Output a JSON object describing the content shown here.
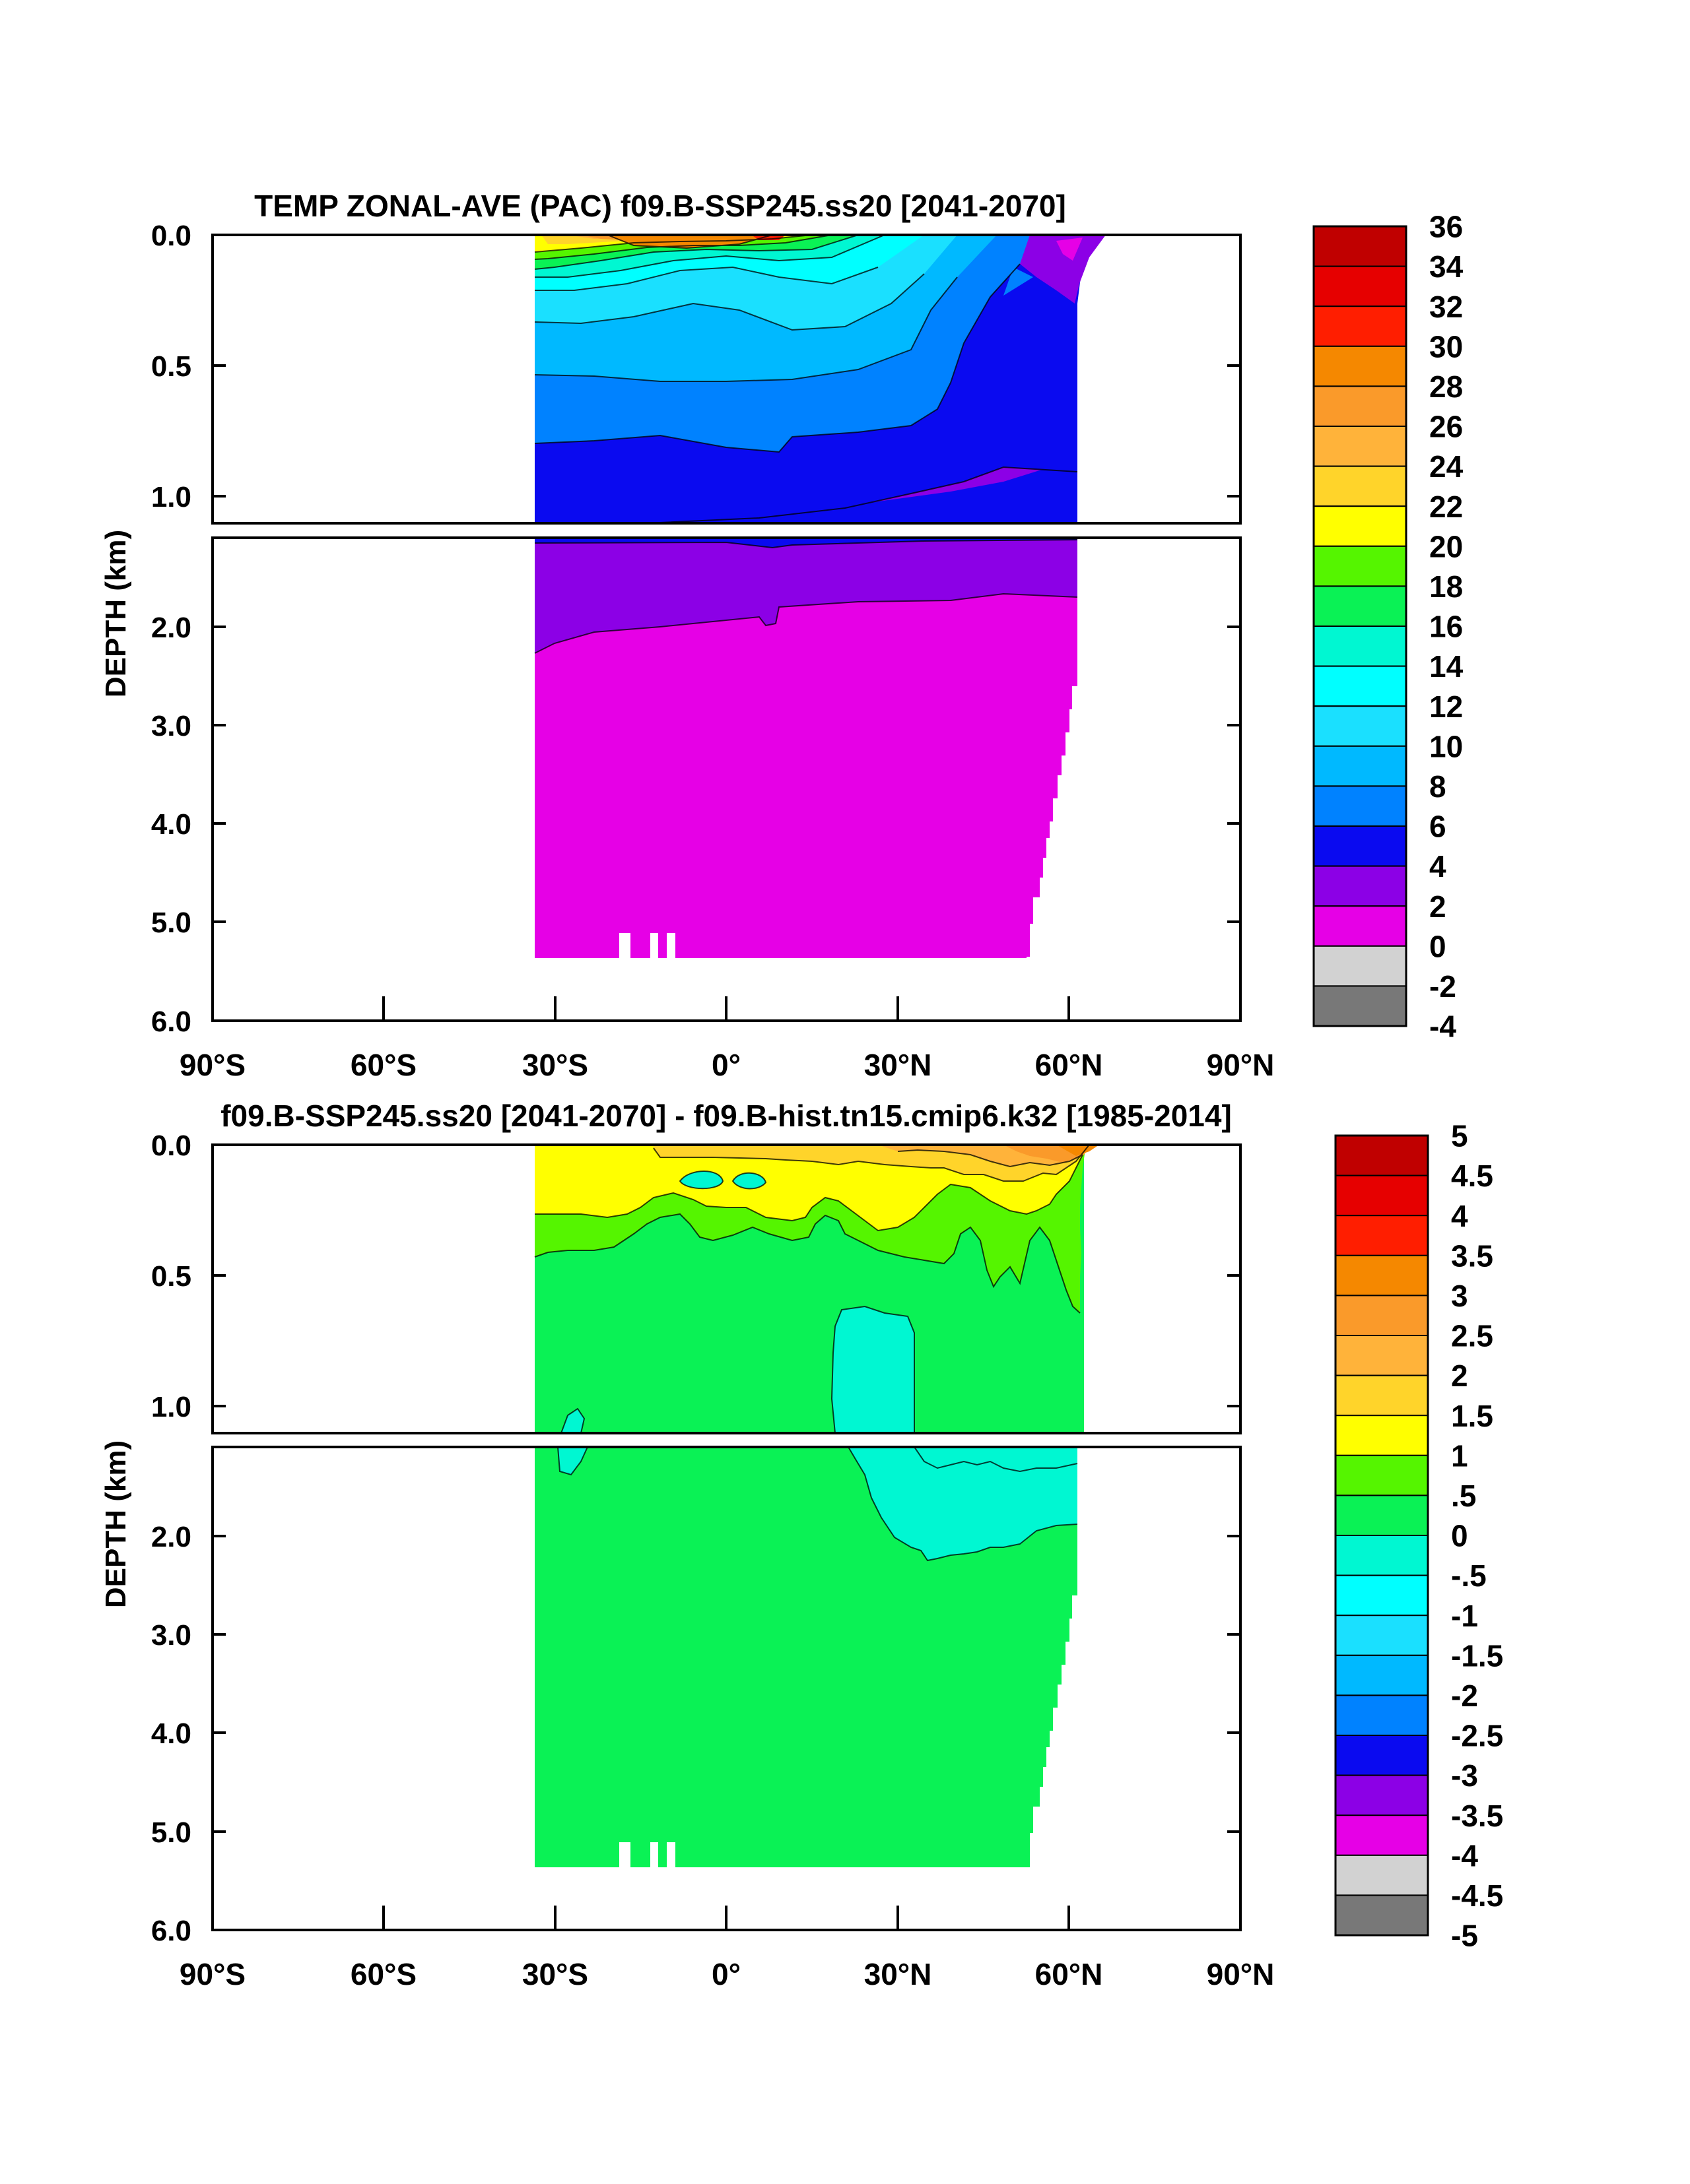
{
  "figure": {
    "panels": [
      {
        "title": "TEMP ZONAL-AVE (PAC) f09.B-SSP245.ss20 [2041-2070]",
        "ylabel": "DEPTH (km)",
        "colorbar_labels": [
          "36",
          "34",
          "32",
          "30",
          "28",
          "26",
          "24",
          "22",
          "20",
          "18",
          "16",
          "14",
          "12",
          "10",
          "8",
          "6",
          "4",
          "2",
          "0",
          "-2",
          "-4"
        ]
      },
      {
        "title": "f09.B-SSP245.ss20 [2041-2070] - f09.B-hist.tn15.cmip6.k32 [1985-2014]",
        "ylabel": "DEPTH (km)",
        "colorbar_labels": [
          "5",
          "4.5",
          "4",
          "3.5",
          "3",
          "2.5",
          "2",
          "1.5",
          "1",
          ".5",
          "0",
          "-.5",
          "-1",
          "-1.5",
          "-2",
          "-2.5",
          "-3",
          "-3.5",
          "-4",
          "-4.5",
          "-5"
        ]
      }
    ],
    "xtick_labels": [
      "90°S",
      "60°S",
      "30°S",
      "0°",
      "30°N",
      "60°N",
      "90°N"
    ],
    "ytick_labels_upper": [
      "0.0",
      "0.5",
      "1.0"
    ],
    "ytick_labels_lower": [
      "2.0",
      "3.0",
      "4.0",
      "5.0",
      "6.0"
    ],
    "colorbar_colors": [
      "#c00000",
      "#e60000",
      "#ff1e00",
      "#f58800",
      "#fa9a2a",
      "#ffb33a",
      "#ffd42a",
      "#ffff00",
      "#55f500",
      "#0af255",
      "#00f7d2",
      "#00ffff",
      "#1ae0ff",
      "#00b9ff",
      "#0082ff",
      "#0a0af0",
      "#8c00e6",
      "#e600e6",
      "#d2d2d2",
      "#787878"
    ]
  },
  "chart_data": [
    {
      "type": "heatmap",
      "title": "TEMP ZONAL-AVE (PAC) f09.B-SSP245.ss20 [2041-2070]",
      "ylabel": "DEPTH (km)",
      "xlim": [
        -90,
        90
      ],
      "ylim": [
        0,
        6
      ],
      "y_axis": "split: 0-1.1 km stretched, 1.1-6 km compressed",
      "colorbar_levels": [
        -4,
        -2,
        0,
        2,
        4,
        6,
        8,
        10,
        12,
        14,
        16,
        18,
        20,
        22,
        24,
        26,
        28,
        30,
        32,
        34,
        36
      ],
      "data_extent": {
        "lat": [
          -33,
          62
        ],
        "max_depth_km": 5.35
      },
      "features": [
        {
          "region": "surface 20S-30N, 0-0.1 km",
          "value_range": [
            26,
            30
          ]
        },
        {
          "region": "thermocline 0.1-0.5 km",
          "value_range": [
            8,
            20
          ]
        },
        {
          "region": "0.5-0.8 km",
          "value_range": [
            6,
            8
          ]
        },
        {
          "region": "0.8-1.2 km",
          "value_range": [
            4,
            6
          ]
        },
        {
          "region": "1.2-2.2 km",
          "value_range": [
            2,
            4
          ]
        },
        {
          "region": "below ~2 km",
          "value_range": [
            0,
            2
          ]
        }
      ]
    },
    {
      "type": "heatmap",
      "title": "f09.B-SSP245.ss20 [2041-2070] - f09.B-hist.tn15.cmip6.k32 [1985-2014]",
      "ylabel": "DEPTH (km)",
      "xlim": [
        -90,
        90
      ],
      "ylim": [
        0,
        6
      ],
      "colorbar_levels": [
        -5,
        -4.5,
        -4,
        -3.5,
        -3,
        -2.5,
        -2,
        -1.5,
        -1,
        -0.5,
        0,
        0.5,
        1,
        1.5,
        2,
        2.5,
        3,
        3.5,
        4,
        4.5,
        5
      ],
      "data_extent": {
        "lat": [
          -33,
          62
        ],
        "max_depth_km": 5.35
      },
      "features": [
        {
          "region": "surface 0-0.2 km",
          "value_range": [
            1.5,
            2.5
          ]
        },
        {
          "region": "0.2-0.45 km",
          "value_range": [
            1,
            1.5
          ]
        },
        {
          "region": "bulk ocean below 0.45 km",
          "value_range": [
            0,
            0.5
          ]
        },
        {
          "region": "20N-32N, 0.65-1.1 km",
          "value_range": [
            -0.5,
            0
          ]
        },
        {
          "region": "20N-62N, 1.2-2.2 km",
          "value_range": [
            -0.5,
            0
          ]
        }
      ]
    }
  ]
}
